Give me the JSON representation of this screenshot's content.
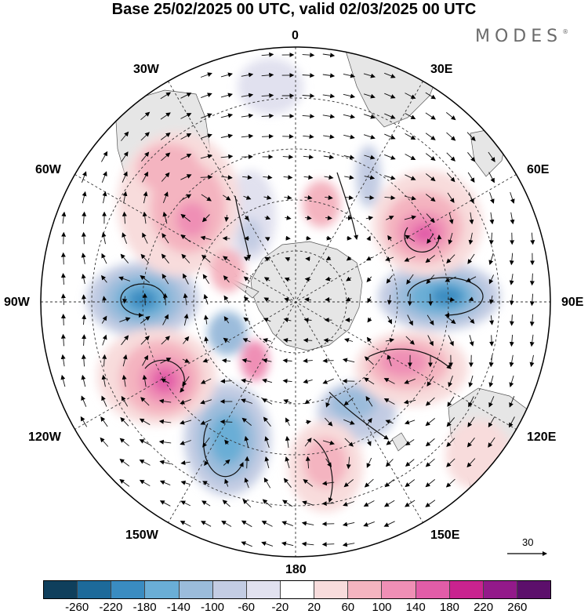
{
  "title": "Base 25/02/2025 00 UTC, valid 02/03/2025 00 UTC",
  "brand": {
    "text": "MODES",
    "mark": "®"
  },
  "map": {
    "projection": "south polar stereographic",
    "longitude_labels": {
      "top": "0",
      "bottom": "180",
      "left": "90W",
      "right": "90E",
      "upper_left_1": "30W",
      "upper_left_2": "60W",
      "upper_right_1": "30E",
      "upper_right_2": "60E",
      "lower_left_1": "120W",
      "lower_left_2": "150W",
      "lower_right_1": "120E",
      "lower_right_2": "150E"
    },
    "vector_reference": "30"
  },
  "colorbar": {
    "colors": [
      "#0f3f5c",
      "#1d6a9a",
      "#3a8cc1",
      "#6aaed6",
      "#9bbcdb",
      "#c3cce3",
      "#e1e1ef",
      "#ffffff",
      "#f8dcdc",
      "#f4b4c0",
      "#ef8fb5",
      "#e25da8",
      "#c9238f",
      "#931a8a",
      "#5c0f6b"
    ],
    "tick_labels": [
      "-260",
      "-220",
      "-180",
      "-140",
      "-100",
      "-60",
      "-20",
      "20",
      "60",
      "100",
      "140",
      "180",
      "220",
      "260"
    ]
  }
}
